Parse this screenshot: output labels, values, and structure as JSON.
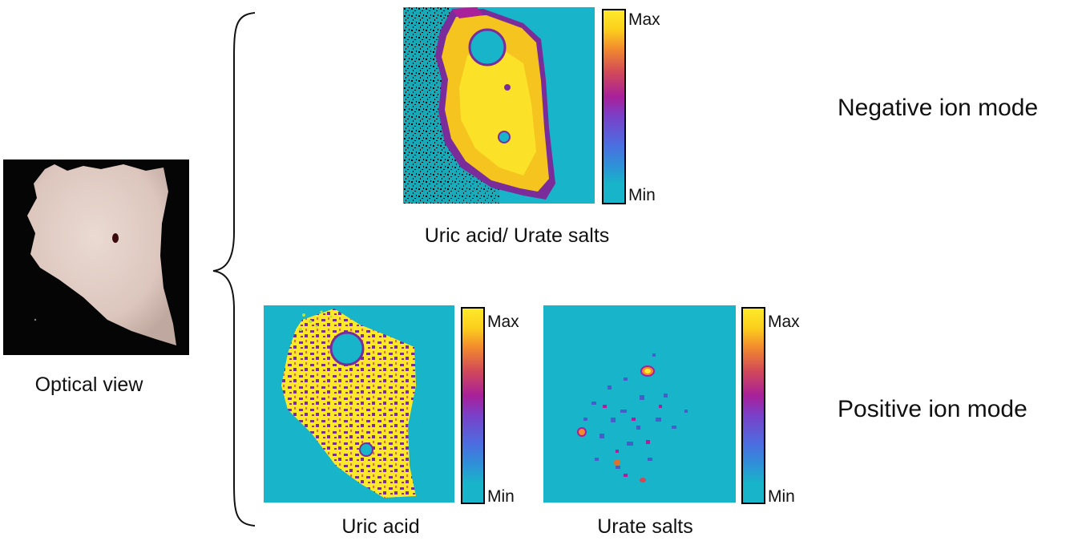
{
  "figure": {
    "optical": {
      "caption": "Optical view"
    },
    "negative": {
      "mode_label": "Negative ion mode",
      "panel_caption": "Uric acid/ Urate salts",
      "colorbar": {
        "max": "Max",
        "min": "Min"
      }
    },
    "positive": {
      "mode_label": "Positive ion mode",
      "uric_acid": {
        "caption": "Uric acid",
        "colorbar": {
          "max": "Max",
          "min": "Min"
        }
      },
      "urate_salts": {
        "caption": "Urate salts",
        "colorbar": {
          "max": "Max",
          "min": "Min"
        }
      }
    }
  },
  "colors": {
    "background_cyan": "#18b4c9",
    "high_yellow": "#fde92a",
    "mid_purple": "#7a2d9a",
    "optical_bg": "#050505",
    "sample": "#e6d4cc"
  }
}
